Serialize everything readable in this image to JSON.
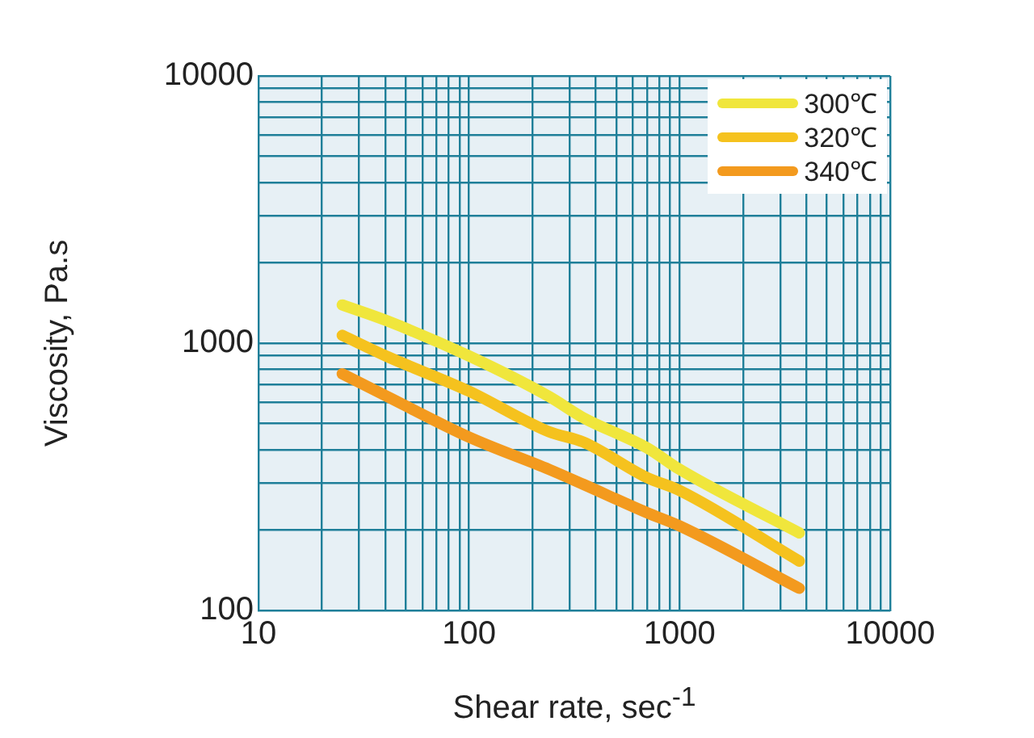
{
  "chart_data": {
    "type": "line",
    "xlabel": "Shear rate, sec$^{-1}$",
    "ylabel": "Viscosity, Pa.s",
    "log": "xy",
    "grid": true,
    "legend": "top right",
    "marker": "none",
    "line_style": "solid",
    "xlim": [
      10,
      10000
    ],
    "ylim": [
      100,
      10000
    ],
    "xticks": [
      10,
      {
        "value": 20,
        "label": null
      },
      {
        "value": 30,
        "label": null
      },
      {
        "value": 40,
        "label": null
      },
      {
        "value": 50,
        "label": null
      },
      {
        "value": 60,
        "label": null
      },
      {
        "value": 70,
        "label": null
      },
      {
        "value": 80,
        "label": null
      },
      {
        "value": 90,
        "label": null
      },
      100,
      {
        "value": 200,
        "label": null
      },
      {
        "value": 300,
        "label": null
      },
      {
        "value": 400,
        "label": null
      },
      {
        "value": 500,
        "label": null
      },
      {
        "value": 600,
        "label": null
      },
      {
        "value": 700,
        "label": null
      },
      {
        "value": 800,
        "label": null
      },
      {
        "value": 900,
        "label": null
      },
      1000,
      {
        "value": 2000,
        "label": null
      },
      {
        "value": 3000,
        "label": null
      },
      {
        "value": 4000,
        "label": null
      },
      {
        "value": 5000,
        "label": null
      },
      {
        "value": 6000,
        "label": null
      },
      {
        "value": 7000,
        "label": null
      },
      {
        "value": 8000,
        "label": null
      },
      {
        "value": 9000,
        "label": null
      },
      10000
    ],
    "yticks": [
      100,
      {
        "value": 200,
        "label": null
      },
      {
        "value": 300,
        "label": null
      },
      {
        "value": 400,
        "label": null
      },
      {
        "value": 500,
        "label": null
      },
      {
        "value": 600,
        "label": null
      },
      {
        "value": 700,
        "label": null
      },
      {
        "value": 800,
        "label": null
      },
      {
        "value": 900,
        "label": null
      },
      1000,
      {
        "value": 2000,
        "label": null
      },
      {
        "value": 3000,
        "label": null
      },
      {
        "value": 4000,
        "label": null
      },
      {
        "value": 5000,
        "label": null
      },
      {
        "value": 6000,
        "label": null
      },
      {
        "value": 7000,
        "label": null
      },
      {
        "value": 8000,
        "label": null
      },
      {
        "value": 9000,
        "label": null
      },
      10000
    ],
    "x": [
      25,
      41,
      100,
      240,
      350,
      700,
      1000,
      3700
    ],
    "series": [
      {
        "name": "300℃",
        "color": "#f0e63c",
        "values": [
          1390,
          1210,
          895,
          631,
          525,
          406,
          337,
          195
        ]
      },
      {
        "name": "320℃",
        "color": "#f5c21e",
        "values": [
          1070,
          890,
          661,
          466,
          426,
          314,
          281,
          153
        ]
      },
      {
        "name": "340℃",
        "color": "#f39a1e",
        "values": [
          768,
          631,
          445,
          337,
          296,
          232,
          207,
          121
        ]
      }
    ]
  }
}
